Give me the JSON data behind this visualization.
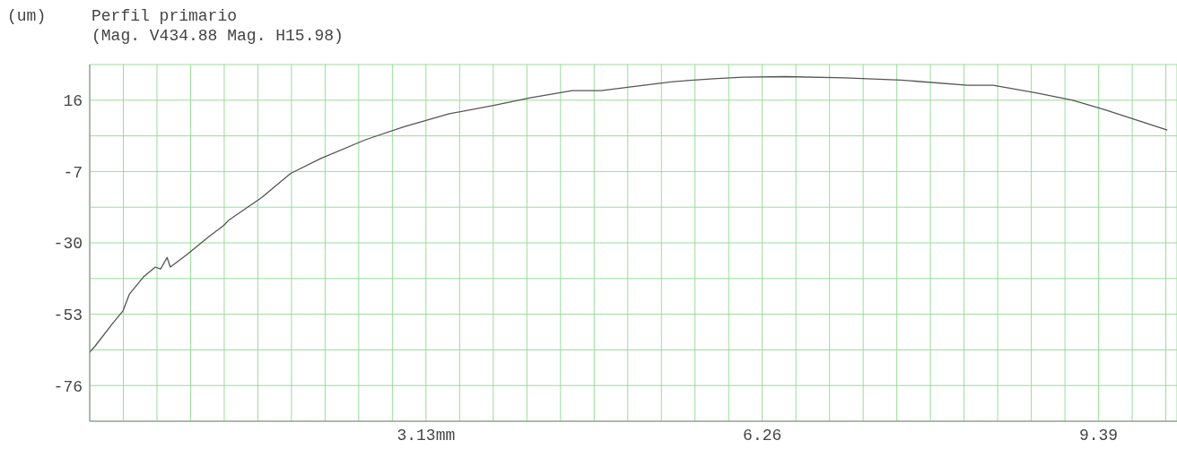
{
  "chart_data": {
    "type": "line",
    "title": "Perfil primario",
    "subtitle": "(Mag. V434.88 Mag. H15.98)",
    "ylabel": "(um)",
    "x": [
      0,
      0.05,
      0.21,
      0.31,
      0.37,
      0.5,
      0.61,
      0.66,
      0.72,
      0.75,
      0.9,
      1.11,
      1.25,
      1.29,
      1.6,
      1.87,
      2.15,
      2.57,
      2.92,
      3.34,
      3.76,
      4.1,
      4.49,
      4.59,
      4.76,
      5.04,
      5.43,
      5.84,
      6.08,
      6.47,
      7.03,
      7.55,
      8.17,
      8.41,
      8.83,
      9.15,
      9.46,
      9.78,
      10.03
    ],
    "series": [
      {
        "color": "#555555",
        "values": [
          -65.3,
          -63.3,
          -56.1,
          -51.9,
          -46.5,
          -41.0,
          -37.8,
          -38.4,
          -34.7,
          -37.8,
          -33.9,
          -28.0,
          -24.3,
          -22.8,
          -15.4,
          -7.6,
          -2.8,
          3.3,
          7.4,
          11.6,
          14.3,
          16.8,
          19.1,
          19.1,
          19.1,
          20.3,
          22.0,
          23.0,
          23.4,
          23.6,
          23.2,
          22.5,
          20.8,
          20.8,
          18.2,
          16.0,
          12.8,
          9.2,
          6.4
        ]
      }
    ],
    "xlim": [
      0,
      10.12
    ],
    "xticks": [
      {
        "value": 0.313,
        "label": null
      },
      {
        "value": 0.626,
        "label": null
      },
      {
        "value": 0.939,
        "label": null
      },
      {
        "value": 1.252,
        "label": null
      },
      {
        "value": 1.565,
        "label": null
      },
      {
        "value": 1.878,
        "label": null
      },
      {
        "value": 2.191,
        "label": null
      },
      {
        "value": 2.504,
        "label": null
      },
      {
        "value": 2.817,
        "label": null
      },
      {
        "value": 3.13,
        "label": "3.13mm"
      },
      {
        "value": 3.443,
        "label": null
      },
      {
        "value": 3.756,
        "label": null
      },
      {
        "value": 4.069,
        "label": null
      },
      {
        "value": 4.382,
        "label": null
      },
      {
        "value": 4.695,
        "label": null
      },
      {
        "value": 5.008,
        "label": null
      },
      {
        "value": 5.321,
        "label": null
      },
      {
        "value": 5.634,
        "label": null
      },
      {
        "value": 5.947,
        "label": null
      },
      {
        "value": 6.26,
        "label": "6.26"
      },
      {
        "value": 6.573,
        "label": null
      },
      {
        "value": 6.886,
        "label": null
      },
      {
        "value": 7.199,
        "label": null
      },
      {
        "value": 7.512,
        "label": null
      },
      {
        "value": 7.825,
        "label": null
      },
      {
        "value": 8.138,
        "label": null
      },
      {
        "value": 8.451,
        "label": null
      },
      {
        "value": 8.764,
        "label": null
      },
      {
        "value": 9.077,
        "label": null
      },
      {
        "value": 9.39,
        "label": "9.39"
      },
      {
        "value": 9.703,
        "label": null
      },
      {
        "value": 10.016,
        "label": null
      }
    ],
    "ylim": [
      -87.5,
      27.5
    ],
    "yticks": [
      {
        "value": -76,
        "label": "-76"
      },
      {
        "value": -64.5,
        "label": null
      },
      {
        "value": -53,
        "label": "-53"
      },
      {
        "value": -41.5,
        "label": null
      },
      {
        "value": -30,
        "label": "-30"
      },
      {
        "value": -18.5,
        "label": null
      },
      {
        "value": -7,
        "label": "-7"
      },
      {
        "value": 4.5,
        "label": null
      },
      {
        "value": 16,
        "label": "16"
      }
    ],
    "grid": true,
    "legend": false,
    "marker": "none",
    "line_style": "solid"
  }
}
